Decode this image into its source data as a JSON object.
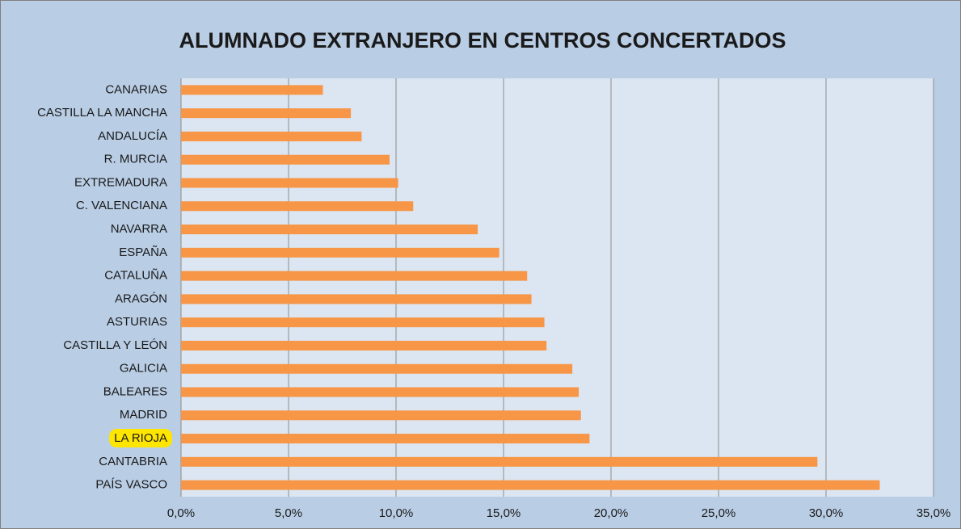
{
  "chart_data": {
    "type": "bar",
    "orientation": "horizontal",
    "title": "ALUMNADO EXTRANJERO EN CENTROS CONCERTADOS",
    "categories": [
      "CANARIAS",
      "CASTILLA LA MANCHA",
      "ANDALUCÍA",
      "R. MURCIA",
      "EXTREMADURA",
      "C. VALENCIANA",
      "NAVARRA",
      "ESPAÑA",
      "CATALUÑA",
      "ARAGÓN",
      "ASTURIAS",
      "CASTILLA Y LEÓN",
      "GALICIA",
      "BALEARES",
      "MADRID",
      "LA RIOJA",
      "CANTABRIA",
      "PAÍS VASCO"
    ],
    "values": [
      6.6,
      7.9,
      8.4,
      9.7,
      10.1,
      10.8,
      13.8,
      14.8,
      16.1,
      16.3,
      16.9,
      17.0,
      18.2,
      18.5,
      18.6,
      19.0,
      29.6,
      32.5
    ],
    "color": "#f79646",
    "highlight_index": 15,
    "highlight_color": "#ffe600",
    "xlim": [
      0,
      35
    ],
    "xticks": [
      {
        "value": 0,
        "label": "0,0%"
      },
      {
        "value": 5,
        "label": "5,0%"
      },
      {
        "value": 10,
        "label": "10,0%"
      },
      {
        "value": 15,
        "label": "15,0%"
      },
      {
        "value": 20,
        "label": "20,0%"
      },
      {
        "value": 25,
        "label": "25,0%"
      },
      {
        "value": 30,
        "label": "30,0%"
      },
      {
        "value": 35,
        "label": "35,0%"
      }
    ],
    "grid": true
  }
}
